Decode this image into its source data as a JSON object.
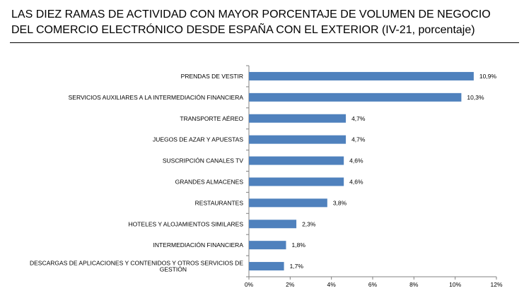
{
  "title": {
    "line1": "LAS DIEZ RAMAS DE ACTIVIDAD CON MAYOR PORCENTAJE DE VOLUMEN DE NEGOCIO",
    "line2": "DEL COMERCIO ELECTRÓNICO DESDE ESPAÑA CON EL EXTERIOR (IV-21, porcentaje)"
  },
  "chart_data": {
    "type": "bar",
    "orientation": "horizontal",
    "categories": [
      [
        "PRENDAS DE VESTIR"
      ],
      [
        "SERVICIOS AUXILIARES A LA INTERMEDIACIÓN FINANCIERA"
      ],
      [
        "TRANSPORTE AÉREO"
      ],
      [
        "JUEGOS DE AZAR Y APUESTAS"
      ],
      [
        "SUSCRIPCIÓN CANALES TV"
      ],
      [
        "GRANDES ALMACENES"
      ],
      [
        "RESTAURANTES"
      ],
      [
        "HOTELES  Y ALOJAMIENTOS SIMILARES"
      ],
      [
        "INTERMEDIACIÓN FINANCIERA"
      ],
      [
        "DESCARGAS DE APLICACIONES Y CONTENIDOS Y OTROS SERVICIOS DE",
        "GESTIÓN"
      ]
    ],
    "values": [
      10.9,
      10.3,
      4.7,
      4.7,
      4.6,
      4.6,
      3.8,
      2.3,
      1.8,
      1.7
    ],
    "value_labels": [
      "10,9%",
      "10,3%",
      "4,7%",
      "4,7%",
      "4,6%",
      "4,6%",
      "3,8%",
      "2,3%",
      "1,8%",
      "1,7%"
    ],
    "xlim": [
      0,
      12
    ],
    "xticks": [
      0,
      2,
      4,
      6,
      8,
      10,
      12
    ],
    "xtick_labels": [
      "0%",
      "2%",
      "4%",
      "6%",
      "8%",
      "10%",
      "12%"
    ],
    "grid": false,
    "bar_color": "#4F81BD"
  }
}
